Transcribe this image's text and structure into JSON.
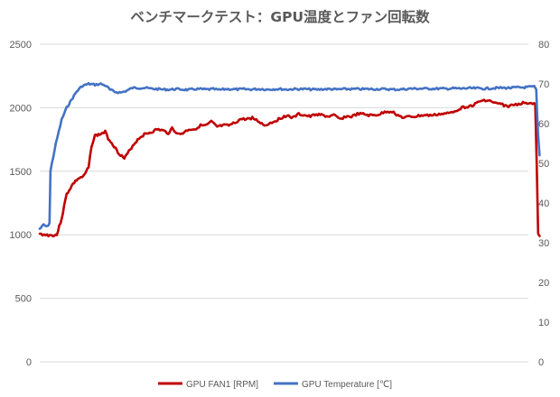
{
  "chart_data": {
    "type": "line",
    "title": "ベンチマークテスト：GPU温度とファン回転数",
    "xlabel": "",
    "y_left": {
      "label": "",
      "range": [
        0,
        2500
      ],
      "ticks": [
        "0",
        "500",
        "1000",
        "1500",
        "2000",
        "2500"
      ]
    },
    "y_right": {
      "label": "",
      "range": [
        0,
        80
      ],
      "ticks": [
        "0",
        "10",
        "20",
        "30",
        "40",
        "50",
        "60",
        "70",
        "80"
      ]
    },
    "grid": true,
    "legend_position": "bottom",
    "x_range": [
      0,
      100
    ],
    "series": [
      {
        "name": "GPU FAN1 [RPM]",
        "axis": "left",
        "color": "#c00000",
        "points": [
          [
            0,
            1005
          ],
          [
            1.5,
            998
          ],
          [
            2.5,
            995
          ],
          [
            3.5,
            1000
          ],
          [
            4.5,
            1130
          ],
          [
            5.5,
            1320
          ],
          [
            6.8,
            1400
          ],
          [
            7.8,
            1440
          ],
          [
            9,
            1460
          ],
          [
            10,
            1530
          ],
          [
            10.6,
            1700
          ],
          [
            11.3,
            1780
          ],
          [
            12.3,
            1790
          ],
          [
            13.4,
            1810
          ],
          [
            14,
            1760
          ],
          [
            15,
            1710
          ],
          [
            16,
            1650
          ],
          [
            17.3,
            1600
          ],
          [
            18,
            1640
          ],
          [
            19,
            1700
          ],
          [
            20.3,
            1760
          ],
          [
            21.4,
            1790
          ],
          [
            23,
            1810
          ],
          [
            24,
            1830
          ],
          [
            25.2,
            1820
          ],
          [
            26.3,
            1800
          ],
          [
            27.1,
            1840
          ],
          [
            28.3,
            1790
          ],
          [
            29.3,
            1800
          ],
          [
            30.5,
            1830
          ],
          [
            31.7,
            1830
          ],
          [
            32.9,
            1860
          ],
          [
            34.1,
            1860
          ],
          [
            35.1,
            1890
          ],
          [
            36.3,
            1850
          ],
          [
            37.5,
            1860
          ],
          [
            38.7,
            1860
          ],
          [
            39.9,
            1880
          ],
          [
            41.1,
            1910
          ],
          [
            42.3,
            1910
          ],
          [
            43.5,
            1920
          ],
          [
            44.9,
            1890
          ],
          [
            46,
            1860
          ],
          [
            47.2,
            1880
          ],
          [
            48.4,
            1900
          ],
          [
            49.4,
            1920
          ],
          [
            50.6,
            1940
          ],
          [
            51.8,
            1920
          ],
          [
            53,
            1950
          ],
          [
            54.2,
            1940
          ],
          [
            55.4,
            1930
          ],
          [
            56.6,
            1950
          ],
          [
            57.9,
            1940
          ],
          [
            59,
            1930
          ],
          [
            60.2,
            1940
          ],
          [
            61.4,
            1910
          ],
          [
            62.6,
            1930
          ],
          [
            63.8,
            1930
          ],
          [
            65,
            1950
          ],
          [
            66.2,
            1950
          ],
          [
            67.3,
            1940
          ],
          [
            68.5,
            1940
          ],
          [
            69.7,
            1950
          ],
          [
            70.9,
            1970
          ],
          [
            72.1,
            1970
          ],
          [
            73.3,
            1940
          ],
          [
            74.5,
            1920
          ],
          [
            75.7,
            1930
          ],
          [
            76.9,
            1930
          ],
          [
            78.1,
            1940
          ],
          [
            79.3,
            1940
          ],
          [
            80.5,
            1940
          ],
          [
            81.7,
            1950
          ],
          [
            82.8,
            1950
          ],
          [
            84,
            1960
          ],
          [
            85.2,
            1980
          ],
          [
            86.4,
            2000
          ],
          [
            87.6,
            2010
          ],
          [
            88.8,
            2020
          ],
          [
            90,
            2050
          ],
          [
            91.2,
            2060
          ],
          [
            92.4,
            2050
          ],
          [
            93.6,
            2030
          ],
          [
            94.4,
            2030
          ],
          [
            95.6,
            2010
          ],
          [
            96.8,
            2020
          ],
          [
            98,
            2030
          ],
          [
            99.2,
            2040
          ],
          [
            100.4,
            2040
          ],
          [
            101.4,
            2030
          ],
          [
            101.7,
            1560
          ],
          [
            102,
            1000
          ],
          [
            102.3,
            990
          ]
        ]
      },
      {
        "name": "GPU Temperature [℃]",
        "axis": "right",
        "color": "#4472c4",
        "points": [
          [
            0,
            33.5
          ],
          [
            0.8,
            34.5
          ],
          [
            1.5,
            34
          ],
          [
            2,
            35
          ],
          [
            2.2,
            48
          ],
          [
            2.5,
            50
          ],
          [
            3.3,
            55
          ],
          [
            4.5,
            61
          ],
          [
            5.5,
            64
          ],
          [
            6.5,
            66
          ],
          [
            7.5,
            68
          ],
          [
            8.7,
            69.5
          ],
          [
            10,
            70
          ],
          [
            11.3,
            69.8
          ],
          [
            12.5,
            70
          ],
          [
            13.6,
            69.5
          ],
          [
            14.4,
            68.5
          ],
          [
            15.4,
            68
          ],
          [
            16.6,
            67.8
          ],
          [
            17.8,
            68.3
          ],
          [
            19,
            69
          ],
          [
            20.3,
            69
          ],
          [
            21.6,
            69
          ],
          [
            22.8,
            68.8
          ],
          [
            24.1,
            68.7
          ],
          [
            25.3,
            68.6
          ],
          [
            26.6,
            68.6
          ],
          [
            27.9,
            68.7
          ],
          [
            29.1,
            68.6
          ],
          [
            30.4,
            68.5
          ],
          [
            31.7,
            68.7
          ],
          [
            32.9,
            68.7
          ],
          [
            34.2,
            68.6
          ],
          [
            35.5,
            68.7
          ],
          [
            36.7,
            68.5
          ],
          [
            38,
            68.7
          ],
          [
            39.2,
            68.7
          ],
          [
            40.5,
            68.6
          ],
          [
            41.8,
            68.7
          ],
          [
            43,
            68.6
          ],
          [
            44.3,
            68.7
          ],
          [
            45.6,
            68.7
          ],
          [
            46.8,
            68.6
          ],
          [
            48.1,
            68.7
          ],
          [
            49.3,
            68.7
          ],
          [
            50.6,
            68.6
          ],
          [
            51.9,
            68.7
          ],
          [
            53.2,
            68.7
          ],
          [
            54.4,
            68.7
          ],
          [
            55.7,
            68.6
          ],
          [
            57,
            68.6
          ],
          [
            58.2,
            68.7
          ],
          [
            59.5,
            68.7
          ],
          [
            60.8,
            68.6
          ],
          [
            62,
            68.7
          ],
          [
            63.3,
            68.7
          ],
          [
            64.6,
            68.7
          ],
          [
            65.8,
            68.7
          ],
          [
            67.1,
            68.7
          ],
          [
            68.4,
            68.7
          ],
          [
            69.6,
            68.7
          ],
          [
            70.9,
            68.7
          ],
          [
            72.2,
            68.6
          ],
          [
            73.4,
            68.6
          ],
          [
            74.7,
            68.7
          ],
          [
            75.9,
            68.8
          ],
          [
            77.2,
            68.8
          ],
          [
            78.5,
            68.8
          ],
          [
            79.7,
            68.8
          ],
          [
            81,
            68.8
          ],
          [
            82.3,
            68.8
          ],
          [
            83.5,
            68.8
          ],
          [
            84.8,
            68.9
          ],
          [
            86.1,
            68.8
          ],
          [
            87.3,
            68.9
          ],
          [
            88.6,
            68.9
          ],
          [
            89.9,
            68.9
          ],
          [
            91.1,
            68.8
          ],
          [
            92.4,
            68.9
          ],
          [
            93.7,
            69
          ],
          [
            94.9,
            69
          ],
          [
            96.2,
            69
          ],
          [
            97.5,
            69.1
          ],
          [
            98.7,
            69.1
          ],
          [
            100,
            69.2
          ],
          [
            101.2,
            69.3
          ],
          [
            101.6,
            68.5
          ],
          [
            101.8,
            62
          ],
          [
            102,
            57
          ],
          [
            102.3,
            52
          ]
        ]
      }
    ]
  }
}
